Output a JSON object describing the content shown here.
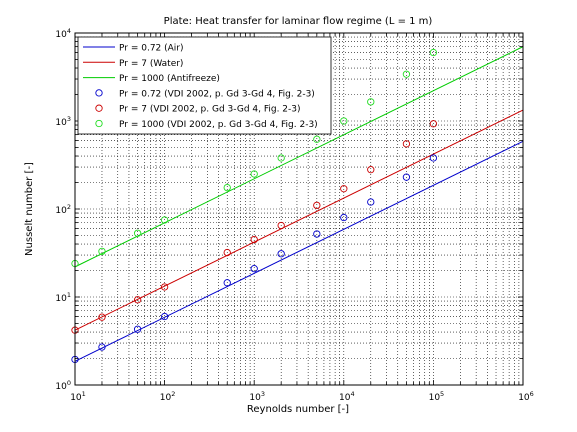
{
  "chart_data": {
    "type": "line",
    "title": "Plate: Heat transfer for laminar flow regime (L = 1 m)",
    "xlabel": "Reynolds number [-]",
    "ylabel": "Nusselt number [-]",
    "xscale": "log",
    "yscale": "log",
    "xlim": [
      10,
      1000000
    ],
    "ylim": [
      1,
      10000
    ],
    "grid": true,
    "legend_position": "top-left",
    "xtick_labels": [
      "10^1",
      "10^2",
      "10^3",
      "10^4",
      "10^5",
      "10^6"
    ],
    "ytick_labels": [
      "10^0",
      "10^1",
      "10^2",
      "10^3",
      "10^4"
    ],
    "series": [
      {
        "name": "Pr = 0.72 (Air)",
        "kind": "line",
        "color": "#0000cc",
        "x": [
          10,
          1000000
        ],
        "y": [
          1.86,
          588
        ]
      },
      {
        "name": "Pr = 7 (Water)",
        "kind": "line",
        "color": "#cc0000",
        "x": [
          10,
          1000000
        ],
        "y": [
          4.2,
          1330
        ]
      },
      {
        "name": "Pr = 1000 (Antifreeze)",
        "kind": "line",
        "color": "#00cc00",
        "x": [
          10,
          1000000
        ],
        "y": [
          22,
          7000
        ]
      },
      {
        "name": "Pr = 0.72 (VDI 2002, p. Gd 3-Gd 4, Fig. 2-3)",
        "kind": "marker",
        "color": "#0000cc",
        "x": [
          10,
          20,
          50,
          100,
          500,
          1000,
          2000,
          5000,
          10000,
          20000,
          50000,
          100000
        ],
        "y": [
          1.95,
          2.7,
          4.3,
          6.0,
          14.5,
          21,
          31,
          52,
          80,
          120,
          230,
          380
        ]
      },
      {
        "name": "Pr = 7 (VDI 2002, p. Gd 3-Gd 4, Fig. 2-3)",
        "kind": "marker",
        "color": "#cc0000",
        "x": [
          10,
          20,
          50,
          100,
          500,
          1000,
          2000,
          5000,
          10000,
          20000,
          50000,
          100000
        ],
        "y": [
          4.2,
          5.9,
          9.3,
          13,
          32,
          45,
          65,
          110,
          170,
          280,
          550,
          930
        ]
      },
      {
        "name": "Pr = 1000 (VDI 2002, p. Gd 3-Gd 4, Fig. 2-3)",
        "kind": "marker",
        "color": "#22dd22",
        "x": [
          10,
          20,
          50,
          100,
          500,
          1000,
          2000,
          5000,
          10000,
          20000,
          50000,
          100000
        ],
        "y": [
          24,
          33,
          53,
          75,
          175,
          250,
          380,
          620,
          1000,
          1650,
          3400,
          6000
        ]
      }
    ]
  }
}
